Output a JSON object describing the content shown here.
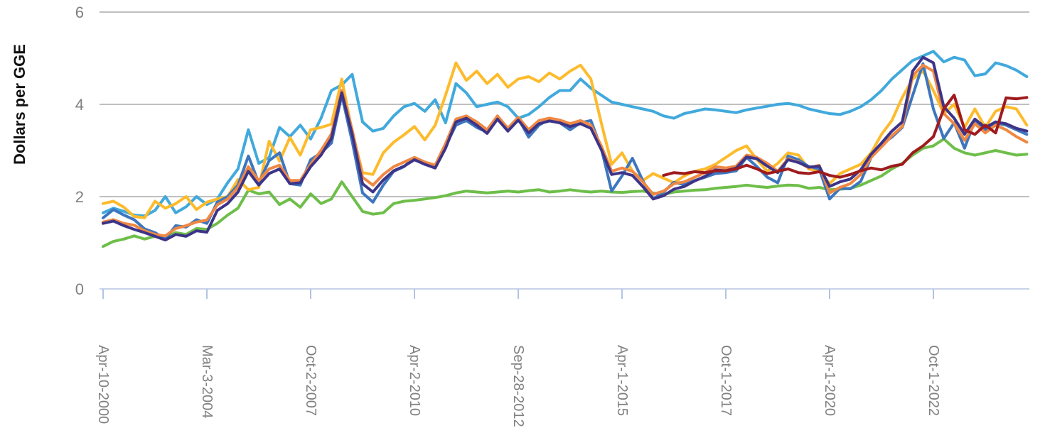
{
  "chart_data": {
    "type": "line",
    "title": "",
    "xlabel": "",
    "ylabel": "Dollars per GGE",
    "ylim": [
      0,
      6
    ],
    "yticks": [
      0,
      2,
      4,
      6
    ],
    "grid": "horizontal",
    "legend": "none",
    "n_points": 90,
    "x_tick_indices": [
      0,
      10,
      20,
      30,
      40,
      50,
      60,
      70,
      80
    ],
    "x_tick_labels": [
      "Apr-10-2000",
      "Mar-3-2004",
      "Oct-2-2007",
      "Apr-2-2010",
      "Sep-28-2012",
      "Apr-1-2015",
      "Oct-1-2017",
      "Apr-1-2020",
      "Oct-1-2022"
    ],
    "colors": {
      "gridline": "#bfbfbf",
      "zero_axis": "#c9d3e8",
      "x_tick_mark": "#b3c4e4",
      "tick_label": "#808080",
      "axis_title": "#111111"
    },
    "series": [
      {
        "name": "green",
        "color": "#6ebe4a",
        "values": [
          0.92,
          1.03,
          1.08,
          1.15,
          1.08,
          1.14,
          1.11,
          1.22,
          1.18,
          1.31,
          1.29,
          1.42,
          1.6,
          1.75,
          2.14,
          2.06,
          2.1,
          1.83,
          1.95,
          1.77,
          2.06,
          1.85,
          1.95,
          2.32,
          2.0,
          1.68,
          1.62,
          1.65,
          1.85,
          1.9,
          1.92,
          1.95,
          1.98,
          2.02,
          2.08,
          2.12,
          2.1,
          2.08,
          2.1,
          2.12,
          2.1,
          2.13,
          2.15,
          2.1,
          2.12,
          2.15,
          2.12,
          2.1,
          2.12,
          2.1,
          2.09,
          2.11,
          2.12,
          2.08,
          2.05,
          2.1,
          2.12,
          2.14,
          2.15,
          2.18,
          2.2,
          2.22,
          2.25,
          2.22,
          2.2,
          2.23,
          2.25,
          2.24,
          2.18,
          2.2,
          2.15,
          2.16,
          2.18,
          2.25,
          2.35,
          2.45,
          2.6,
          2.72,
          2.9,
          3.05,
          3.1,
          3.25,
          3.05,
          2.95,
          2.9,
          2.95,
          3.0,
          2.95,
          2.9,
          2.92
        ]
      },
      {
        "name": "sky-blue",
        "color": "#41a9dc",
        "values": [
          1.65,
          1.75,
          1.68,
          1.6,
          1.58,
          1.7,
          2.0,
          1.65,
          1.78,
          2.0,
          1.83,
          1.95,
          2.3,
          2.6,
          3.45,
          2.72,
          2.85,
          3.5,
          3.3,
          3.55,
          3.25,
          3.7,
          4.3,
          4.42,
          4.65,
          3.62,
          3.42,
          3.48,
          3.75,
          3.95,
          4.02,
          3.85,
          4.1,
          3.6,
          4.45,
          4.25,
          3.95,
          4.0,
          4.05,
          3.95,
          3.7,
          3.78,
          3.95,
          4.15,
          4.3,
          4.3,
          4.55,
          4.35,
          4.2,
          4.05,
          4.0,
          3.95,
          3.9,
          3.85,
          3.75,
          3.7,
          3.8,
          3.85,
          3.9,
          3.88,
          3.85,
          3.82,
          3.88,
          3.92,
          3.96,
          4.0,
          4.02,
          3.98,
          3.9,
          3.85,
          3.8,
          3.78,
          3.85,
          3.95,
          4.1,
          4.3,
          4.55,
          4.75,
          4.95,
          5.05,
          5.15,
          4.92,
          5.02,
          4.96,
          4.62,
          4.66,
          4.9,
          4.84,
          4.74,
          4.6
        ]
      },
      {
        "name": "yellow",
        "color": "#fdbb2c",
        "values": [
          1.85,
          1.9,
          1.77,
          1.57,
          1.54,
          1.9,
          1.75,
          1.85,
          2.0,
          1.72,
          1.88,
          1.95,
          2.0,
          2.37,
          2.15,
          2.2,
          3.2,
          2.77,
          3.28,
          2.9,
          3.45,
          3.5,
          3.57,
          4.55,
          3.4,
          2.52,
          2.48,
          2.95,
          3.18,
          3.34,
          3.52,
          3.23,
          3.55,
          4.2,
          4.9,
          4.52,
          4.72,
          4.45,
          4.65,
          4.37,
          4.55,
          4.6,
          4.49,
          4.68,
          4.55,
          4.72,
          4.85,
          4.55,
          3.6,
          2.7,
          2.95,
          2.55,
          2.35,
          2.5,
          2.4,
          2.3,
          2.45,
          2.55,
          2.6,
          2.7,
          2.85,
          3.0,
          3.1,
          2.8,
          2.55,
          2.72,
          2.95,
          2.9,
          2.6,
          2.55,
          2.28,
          2.5,
          2.6,
          2.7,
          2.95,
          3.35,
          3.65,
          4.15,
          4.55,
          4.72,
          4.3,
          3.8,
          4.0,
          3.5,
          3.9,
          3.5,
          3.85,
          3.95,
          3.9,
          3.55
        ]
      },
      {
        "name": "medium-blue",
        "color": "#3d76be",
        "values": [
          1.54,
          1.72,
          1.6,
          1.5,
          1.3,
          1.22,
          1.08,
          1.37,
          1.34,
          1.5,
          1.42,
          1.88,
          2.0,
          2.25,
          2.88,
          2.3,
          2.78,
          2.95,
          2.28,
          2.25,
          2.8,
          2.95,
          3.16,
          4.2,
          3.2,
          2.08,
          1.88,
          2.25,
          2.55,
          2.65,
          2.85,
          2.75,
          2.65,
          3.1,
          3.55,
          3.65,
          3.5,
          3.4,
          3.7,
          3.44,
          3.7,
          3.29,
          3.55,
          3.68,
          3.6,
          3.45,
          3.6,
          3.65,
          3.05,
          2.12,
          2.45,
          2.83,
          2.35,
          1.95,
          2.1,
          2.31,
          2.26,
          2.35,
          2.42,
          2.5,
          2.52,
          2.56,
          2.85,
          2.65,
          2.42,
          2.3,
          2.88,
          2.8,
          2.65,
          2.6,
          1.95,
          2.18,
          2.17,
          2.33,
          2.85,
          3.14,
          3.29,
          3.5,
          4.19,
          4.88,
          3.9,
          3.26,
          3.6,
          3.05,
          3.65,
          3.45,
          3.6,
          3.55,
          3.45,
          3.35
        ]
      },
      {
        "name": "orange",
        "color": "#ef8843",
        "values": [
          1.45,
          1.5,
          1.42,
          1.38,
          1.26,
          1.18,
          1.15,
          1.31,
          1.37,
          1.45,
          1.49,
          1.82,
          1.95,
          2.2,
          2.65,
          2.35,
          2.6,
          2.68,
          2.35,
          2.35,
          2.7,
          3.0,
          3.36,
          4.3,
          3.45,
          2.42,
          2.25,
          2.48,
          2.65,
          2.75,
          2.85,
          2.75,
          2.68,
          3.15,
          3.68,
          3.75,
          3.62,
          3.45,
          3.75,
          3.48,
          3.72,
          3.45,
          3.65,
          3.7,
          3.66,
          3.58,
          3.65,
          3.55,
          3.1,
          2.55,
          2.62,
          2.55,
          2.32,
          2.05,
          2.12,
          2.28,
          2.32,
          2.42,
          2.52,
          2.65,
          2.62,
          2.66,
          2.9,
          2.85,
          2.72,
          2.55,
          2.82,
          2.75,
          2.62,
          2.68,
          2.08,
          2.2,
          2.28,
          2.48,
          2.85,
          3.08,
          3.32,
          3.52,
          4.62,
          4.85,
          4.72,
          3.8,
          3.58,
          3.22,
          3.58,
          3.38,
          3.55,
          3.45,
          3.3,
          3.18
        ]
      },
      {
        "name": "dark-purple",
        "color": "#3d3488",
        "values": [
          1.42,
          1.47,
          1.37,
          1.29,
          1.22,
          1.14,
          1.06,
          1.18,
          1.14,
          1.26,
          1.23,
          1.7,
          1.85,
          2.1,
          2.55,
          2.25,
          2.5,
          2.6,
          2.28,
          2.3,
          2.65,
          2.9,
          3.26,
          4.25,
          3.35,
          2.28,
          2.1,
          2.36,
          2.56,
          2.66,
          2.8,
          2.7,
          2.62,
          3.05,
          3.62,
          3.7,
          3.55,
          3.37,
          3.68,
          3.42,
          3.66,
          3.38,
          3.58,
          3.64,
          3.6,
          3.52,
          3.58,
          3.48,
          3.02,
          2.48,
          2.52,
          2.46,
          2.22,
          1.95,
          2.02,
          2.16,
          2.22,
          2.34,
          2.44,
          2.58,
          2.56,
          2.62,
          2.86,
          2.82,
          2.66,
          2.52,
          2.8,
          2.74,
          2.64,
          2.66,
          2.22,
          2.32,
          2.38,
          2.58,
          2.92,
          3.16,
          3.42,
          3.62,
          4.72,
          5.02,
          4.9,
          3.95,
          3.7,
          3.35,
          3.68,
          3.5,
          3.62,
          3.58,
          3.48,
          3.42
        ]
      },
      {
        "name": "dark-red",
        "color": "#9e1b1e",
        "values": [
          null,
          null,
          null,
          null,
          null,
          null,
          null,
          null,
          null,
          null,
          null,
          null,
          null,
          null,
          null,
          null,
          null,
          null,
          null,
          null,
          null,
          null,
          null,
          null,
          null,
          null,
          null,
          null,
          null,
          null,
          null,
          null,
          null,
          null,
          null,
          null,
          null,
          null,
          null,
          null,
          null,
          null,
          null,
          null,
          null,
          null,
          null,
          null,
          null,
          null,
          null,
          null,
          null,
          null,
          2.46,
          2.52,
          2.5,
          2.54,
          2.52,
          2.56,
          2.56,
          2.6,
          2.68,
          2.6,
          2.5,
          2.55,
          2.6,
          2.52,
          2.5,
          2.54,
          2.46,
          2.42,
          2.48,
          2.56,
          2.62,
          2.58,
          2.66,
          2.7,
          2.95,
          3.1,
          3.3,
          3.9,
          4.2,
          3.45,
          3.35,
          3.55,
          3.38,
          4.14,
          4.12,
          4.15
        ]
      }
    ]
  }
}
